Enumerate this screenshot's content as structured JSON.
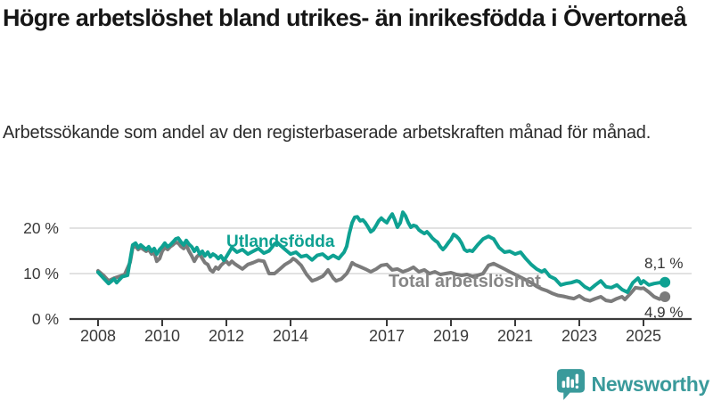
{
  "header": {
    "title": "Högre arbetslöshet bland utrikes- än inrikesfödda i Övertorneå",
    "subtitle": "Arbetssökande som andel av den registerbaserade arbetskraften månad för månad."
  },
  "chart_data": {
    "type": "line",
    "title": "Högre arbetslöshet bland utrikes- än inrikesfödda i Övertorneå",
    "unit": "%",
    "x_axis": {
      "tick_years": [
        2008,
        2010,
        2012,
        2014,
        2017,
        2019,
        2021,
        2023,
        2025
      ],
      "range": [
        2007.1,
        2026.5
      ]
    },
    "y_axis": {
      "ticks": [
        0,
        10,
        20
      ],
      "tick_labels": [
        "0 %",
        "10 %",
        "20 %"
      ],
      "range": [
        0,
        25
      ]
    },
    "grid": "horizontal",
    "axis_color": "#3a3a3a",
    "grid_color": "#d9d9d9",
    "series": [
      {
        "name": "Utlandsfödda",
        "color": "#0ea192",
        "end_label": "8,1 %",
        "end_value": 8.1,
        "points": [
          [
            2008.0,
            10.3
          ],
          [
            2008.17,
            9.0
          ],
          [
            2008.33,
            7.8
          ],
          [
            2008.5,
            8.8
          ],
          [
            2008.58,
            8.0
          ],
          [
            2008.75,
            9.3
          ],
          [
            2008.92,
            9.6
          ],
          [
            2009.0,
            13.0
          ],
          [
            2009.08,
            16.3
          ],
          [
            2009.17,
            16.7
          ],
          [
            2009.25,
            15.7
          ],
          [
            2009.33,
            16.3
          ],
          [
            2009.5,
            15.3
          ],
          [
            2009.58,
            15.9
          ],
          [
            2009.67,
            14.9
          ],
          [
            2009.75,
            15.5
          ],
          [
            2009.83,
            14.3
          ],
          [
            2009.92,
            15.3
          ],
          [
            2010.0,
            15.9
          ],
          [
            2010.08,
            16.7
          ],
          [
            2010.17,
            15.9
          ],
          [
            2010.25,
            16.3
          ],
          [
            2010.33,
            16.9
          ],
          [
            2010.42,
            17.6
          ],
          [
            2010.5,
            17.8
          ],
          [
            2010.58,
            17.0
          ],
          [
            2010.67,
            16.3
          ],
          [
            2010.75,
            17.3
          ],
          [
            2010.83,
            16.5
          ],
          [
            2010.92,
            15.9
          ],
          [
            2011.0,
            14.9
          ],
          [
            2011.08,
            15.7
          ],
          [
            2011.17,
            14.3
          ],
          [
            2011.25,
            14.9
          ],
          [
            2011.33,
            13.9
          ],
          [
            2011.42,
            14.7
          ],
          [
            2011.5,
            13.7
          ],
          [
            2011.58,
            14.3
          ],
          [
            2011.67,
            13.9
          ],
          [
            2011.75,
            13.3
          ],
          [
            2011.83,
            13.9
          ],
          [
            2011.92,
            12.9
          ],
          [
            2012.0,
            13.7
          ],
          [
            2012.17,
            15.7
          ],
          [
            2012.33,
            14.7
          ],
          [
            2012.5,
            15.3
          ],
          [
            2012.67,
            14.3
          ],
          [
            2012.83,
            14.9
          ],
          [
            2013.0,
            15.5
          ],
          [
            2013.17,
            14.5
          ],
          [
            2013.33,
            15.0
          ],
          [
            2013.5,
            16.5
          ],
          [
            2013.58,
            16.9
          ],
          [
            2013.67,
            16.3
          ],
          [
            2013.83,
            15.3
          ],
          [
            2014.0,
            14.3
          ],
          [
            2014.17,
            14.7
          ],
          [
            2014.33,
            13.7
          ],
          [
            2014.5,
            14.0
          ],
          [
            2014.67,
            13.0
          ],
          [
            2014.83,
            14.0
          ],
          [
            2015.0,
            14.3
          ],
          [
            2015.17,
            13.3
          ],
          [
            2015.33,
            14.0
          ],
          [
            2015.5,
            13.3
          ],
          [
            2015.67,
            14.7
          ],
          [
            2015.75,
            16.0
          ],
          [
            2015.83,
            18.8
          ],
          [
            2015.92,
            21.2
          ],
          [
            2016.0,
            22.4
          ],
          [
            2016.08,
            22.5
          ],
          [
            2016.17,
            21.6
          ],
          [
            2016.25,
            21.8
          ],
          [
            2016.33,
            21.2
          ],
          [
            2016.42,
            20.2
          ],
          [
            2016.5,
            19.2
          ],
          [
            2016.58,
            19.6
          ],
          [
            2016.67,
            20.6
          ],
          [
            2016.75,
            21.6
          ],
          [
            2016.83,
            22.2
          ],
          [
            2016.92,
            21.6
          ],
          [
            2017.0,
            21.2
          ],
          [
            2017.08,
            22.2
          ],
          [
            2017.17,
            23.1
          ],
          [
            2017.25,
            21.8
          ],
          [
            2017.33,
            20.2
          ],
          [
            2017.42,
            21.2
          ],
          [
            2017.5,
            23.5
          ],
          [
            2017.58,
            22.7
          ],
          [
            2017.67,
            21.2
          ],
          [
            2017.75,
            20.2
          ],
          [
            2017.83,
            20.6
          ],
          [
            2017.92,
            20.4
          ],
          [
            2018.0,
            19.6
          ],
          [
            2018.08,
            19.2
          ],
          [
            2018.17,
            18.8
          ],
          [
            2018.25,
            19.2
          ],
          [
            2018.33,
            18.6
          ],
          [
            2018.42,
            17.8
          ],
          [
            2018.5,
            17.3
          ],
          [
            2018.58,
            16.9
          ],
          [
            2018.67,
            15.9
          ],
          [
            2018.75,
            15.3
          ],
          [
            2018.83,
            15.9
          ],
          [
            2018.92,
            16.8
          ],
          [
            2019.0,
            17.5
          ],
          [
            2019.08,
            18.6
          ],
          [
            2019.17,
            18.2
          ],
          [
            2019.25,
            17.6
          ],
          [
            2019.33,
            16.7
          ],
          [
            2019.42,
            15.3
          ],
          [
            2019.5,
            14.9
          ],
          [
            2019.58,
            15.1
          ],
          [
            2019.67,
            14.9
          ],
          [
            2019.83,
            16.3
          ],
          [
            2020.0,
            17.6
          ],
          [
            2020.17,
            18.2
          ],
          [
            2020.33,
            17.6
          ],
          [
            2020.5,
            15.7
          ],
          [
            2020.67,
            14.7
          ],
          [
            2020.83,
            14.9
          ],
          [
            2021.0,
            14.3
          ],
          [
            2021.17,
            14.7
          ],
          [
            2021.33,
            13.3
          ],
          [
            2021.5,
            12.0
          ],
          [
            2021.67,
            11.0
          ],
          [
            2021.83,
            10.4
          ],
          [
            2021.92,
            10.8
          ],
          [
            2022.08,
            9.4
          ],
          [
            2022.25,
            8.8
          ],
          [
            2022.42,
            7.5
          ],
          [
            2022.58,
            7.8
          ],
          [
            2022.75,
            8.0
          ],
          [
            2022.92,
            8.4
          ],
          [
            2023.0,
            8.2
          ],
          [
            2023.17,
            7.1
          ],
          [
            2023.33,
            6.5
          ],
          [
            2023.5,
            7.5
          ],
          [
            2023.67,
            8.4
          ],
          [
            2023.83,
            7.1
          ],
          [
            2024.0,
            6.9
          ],
          [
            2024.17,
            7.5
          ],
          [
            2024.33,
            6.5
          ],
          [
            2024.5,
            5.9
          ],
          [
            2024.67,
            8.0
          ],
          [
            2024.83,
            9.0
          ],
          [
            2024.92,
            7.8
          ],
          [
            2025.0,
            8.4
          ],
          [
            2025.17,
            7.5
          ],
          [
            2025.33,
            7.8
          ],
          [
            2025.5,
            8.0
          ],
          [
            2025.67,
            8.1
          ]
        ]
      },
      {
        "name": "Total arbetslöshet",
        "color": "#7b7b7b",
        "end_label": "4,9 %",
        "end_value": 4.9,
        "points": [
          [
            2008.0,
            10.6
          ],
          [
            2008.17,
            9.6
          ],
          [
            2008.33,
            8.4
          ],
          [
            2008.5,
            9.0
          ],
          [
            2008.67,
            9.4
          ],
          [
            2008.83,
            9.8
          ],
          [
            2009.0,
            12.5
          ],
          [
            2009.08,
            15.7
          ],
          [
            2009.17,
            16.0
          ],
          [
            2009.25,
            15.3
          ],
          [
            2009.33,
            15.7
          ],
          [
            2009.5,
            14.9
          ],
          [
            2009.58,
            15.3
          ],
          [
            2009.67,
            14.3
          ],
          [
            2009.75,
            14.7
          ],
          [
            2009.83,
            12.7
          ],
          [
            2009.92,
            13.3
          ],
          [
            2010.0,
            14.9
          ],
          [
            2010.08,
            15.7
          ],
          [
            2010.17,
            15.3
          ],
          [
            2010.25,
            15.9
          ],
          [
            2010.33,
            16.3
          ],
          [
            2010.42,
            16.9
          ],
          [
            2010.5,
            16.7
          ],
          [
            2010.58,
            16.0
          ],
          [
            2010.67,
            15.5
          ],
          [
            2010.75,
            16.3
          ],
          [
            2010.83,
            15.0
          ],
          [
            2010.92,
            13.9
          ],
          [
            2011.0,
            12.7
          ],
          [
            2011.08,
            13.7
          ],
          [
            2011.17,
            14.3
          ],
          [
            2011.25,
            13.3
          ],
          [
            2011.33,
            12.4
          ],
          [
            2011.42,
            12.0
          ],
          [
            2011.5,
            10.8
          ],
          [
            2011.58,
            10.4
          ],
          [
            2011.67,
            11.4
          ],
          [
            2011.75,
            11.0
          ],
          [
            2011.83,
            11.8
          ],
          [
            2011.92,
            12.4
          ],
          [
            2012.0,
            12.7
          ],
          [
            2012.08,
            12.0
          ],
          [
            2012.17,
            12.7
          ],
          [
            2012.25,
            12.2
          ],
          [
            2012.33,
            11.8
          ],
          [
            2012.5,
            11.0
          ],
          [
            2012.67,
            12.0
          ],
          [
            2012.83,
            12.4
          ],
          [
            2013.0,
            12.9
          ],
          [
            2013.17,
            12.7
          ],
          [
            2013.33,
            10.0
          ],
          [
            2013.5,
            10.0
          ],
          [
            2013.67,
            11.0
          ],
          [
            2013.83,
            12.0
          ],
          [
            2014.0,
            12.7
          ],
          [
            2014.08,
            13.3
          ],
          [
            2014.17,
            12.9
          ],
          [
            2014.33,
            11.8
          ],
          [
            2014.5,
            9.8
          ],
          [
            2014.67,
            8.4
          ],
          [
            2014.83,
            8.8
          ],
          [
            2015.0,
            9.4
          ],
          [
            2015.08,
            10.0
          ],
          [
            2015.17,
            10.8
          ],
          [
            2015.33,
            9.0
          ],
          [
            2015.42,
            8.4
          ],
          [
            2015.58,
            8.8
          ],
          [
            2015.75,
            10.0
          ],
          [
            2015.83,
            11.0
          ],
          [
            2015.92,
            12.4
          ],
          [
            2016.0,
            12.0
          ],
          [
            2016.17,
            11.5
          ],
          [
            2016.33,
            11.0
          ],
          [
            2016.5,
            10.4
          ],
          [
            2016.67,
            11.0
          ],
          [
            2016.83,
            11.8
          ],
          [
            2017.0,
            12.0
          ],
          [
            2017.17,
            10.8
          ],
          [
            2017.33,
            11.0
          ],
          [
            2017.5,
            10.4
          ],
          [
            2017.67,
            10.8
          ],
          [
            2017.83,
            11.4
          ],
          [
            2018.0,
            10.4
          ],
          [
            2018.17,
            10.8
          ],
          [
            2018.33,
            10.0
          ],
          [
            2018.5,
            10.4
          ],
          [
            2018.67,
            9.8
          ],
          [
            2018.83,
            10.0
          ],
          [
            2019.0,
            10.2
          ],
          [
            2019.17,
            9.8
          ],
          [
            2019.33,
            9.6
          ],
          [
            2019.5,
            9.8
          ],
          [
            2019.67,
            9.4
          ],
          [
            2019.83,
            9.6
          ],
          [
            2020.0,
            10.0
          ],
          [
            2020.17,
            11.8
          ],
          [
            2020.33,
            12.2
          ],
          [
            2020.5,
            11.6
          ],
          [
            2020.67,
            11.0
          ],
          [
            2020.83,
            10.4
          ],
          [
            2021.0,
            9.8
          ],
          [
            2021.17,
            9.2
          ],
          [
            2021.33,
            8.6
          ],
          [
            2021.5,
            8.0
          ],
          [
            2021.67,
            7.2
          ],
          [
            2021.83,
            6.6
          ],
          [
            2022.0,
            6.2
          ],
          [
            2022.17,
            5.6
          ],
          [
            2022.33,
            5.2
          ],
          [
            2022.5,
            5.0
          ],
          [
            2022.67,
            4.7
          ],
          [
            2022.83,
            4.5
          ],
          [
            2023.0,
            5.1
          ],
          [
            2023.17,
            4.3
          ],
          [
            2023.33,
            4.0
          ],
          [
            2023.5,
            4.5
          ],
          [
            2023.67,
            4.9
          ],
          [
            2023.83,
            4.1
          ],
          [
            2024.0,
            3.9
          ],
          [
            2024.17,
            4.5
          ],
          [
            2024.33,
            4.9
          ],
          [
            2024.42,
            4.3
          ],
          [
            2024.58,
            5.5
          ],
          [
            2024.75,
            6.9
          ],
          [
            2024.92,
            6.7
          ],
          [
            2025.0,
            6.8
          ],
          [
            2025.17,
            5.9
          ],
          [
            2025.33,
            4.9
          ],
          [
            2025.5,
            4.4
          ],
          [
            2025.67,
            4.9
          ]
        ]
      }
    ],
    "legend_position": "inline-labels"
  },
  "footer": {
    "brand": "Newsworthy",
    "brand_color": "#3a9a9b",
    "logo_icon": "bar-chart-speech-bubble-icon"
  }
}
